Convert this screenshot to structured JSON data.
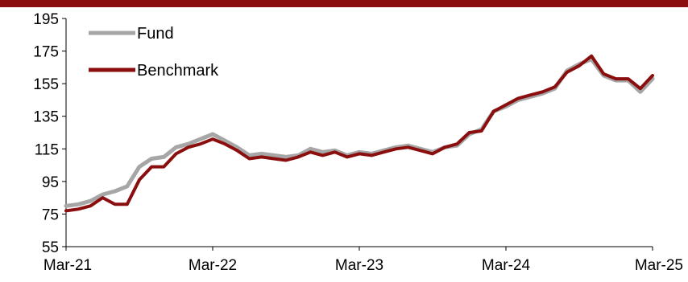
{
  "chart_data": {
    "type": "line",
    "title": "",
    "xlabel": "",
    "ylabel": "",
    "ylim": [
      55,
      195
    ],
    "y_ticks": [
      "195",
      "175",
      "155",
      "135",
      "115",
      "95",
      "75",
      "55"
    ],
    "x_ticks": [
      "Mar-21",
      "Mar-22",
      "Mar-23",
      "Mar-24",
      "Mar-25"
    ],
    "xlim": [
      "2021-03",
      "2025-03"
    ],
    "grid": false,
    "legend_position": "top-left",
    "series": [
      {
        "name": "Fund",
        "color": "#a6a6a6",
        "x": [
          "2021-03",
          "2021-04",
          "2021-05",
          "2021-06",
          "2021-07",
          "2021-08",
          "2021-09",
          "2021-10",
          "2021-11",
          "2021-12",
          "2022-01",
          "2022-02",
          "2022-03",
          "2022-04",
          "2022-05",
          "2022-06",
          "2022-07",
          "2022-08",
          "2022-09",
          "2022-10",
          "2022-11",
          "2022-12",
          "2023-01",
          "2023-02",
          "2023-03",
          "2023-04",
          "2023-05",
          "2023-06",
          "2023-07",
          "2023-08",
          "2023-09",
          "2023-10",
          "2023-11",
          "2023-12",
          "2024-01",
          "2024-02",
          "2024-03",
          "2024-04",
          "2024-05",
          "2024-06",
          "2024-07",
          "2024-08",
          "2024-09",
          "2024-10",
          "2024-11",
          "2024-12",
          "2025-01",
          "2025-02",
          "2025-03"
        ],
        "values": [
          80,
          81,
          83,
          87,
          89,
          92,
          104,
          109,
          110,
          116,
          118,
          121,
          124,
          120,
          116,
          111,
          112,
          111,
          110,
          111,
          115,
          113,
          114,
          111,
          113,
          112,
          114,
          116,
          117,
          115,
          113,
          116,
          117,
          124,
          127,
          138,
          141,
          145,
          147,
          149,
          152,
          163,
          167,
          170,
          160,
          157,
          157,
          150,
          158
        ]
      },
      {
        "name": "Benchmark",
        "color": "#8b0e0e",
        "x": [
          "2021-03",
          "2021-04",
          "2021-05",
          "2021-06",
          "2021-07",
          "2021-08",
          "2021-09",
          "2021-10",
          "2021-11",
          "2021-12",
          "2022-01",
          "2022-02",
          "2022-03",
          "2022-04",
          "2022-05",
          "2022-06",
          "2022-07",
          "2022-08",
          "2022-09",
          "2022-10",
          "2022-11",
          "2022-12",
          "2023-01",
          "2023-02",
          "2023-03",
          "2023-04",
          "2023-05",
          "2023-06",
          "2023-07",
          "2023-08",
          "2023-09",
          "2023-10",
          "2023-11",
          "2023-12",
          "2024-01",
          "2024-02",
          "2024-03",
          "2024-04",
          "2024-05",
          "2024-06",
          "2024-07",
          "2024-08",
          "2024-09",
          "2024-10",
          "2024-11",
          "2024-12",
          "2025-01",
          "2025-02",
          "2025-03"
        ],
        "values": [
          77,
          78,
          80,
          85,
          81,
          81,
          96,
          104,
          104,
          112,
          116,
          118,
          121,
          118,
          114,
          109,
          110,
          109,
          108,
          110,
          113,
          111,
          113,
          110,
          112,
          111,
          113,
          115,
          116,
          114,
          112,
          116,
          118,
          125,
          126,
          138,
          142,
          146,
          148,
          150,
          153,
          162,
          166,
          172,
          161,
          158,
          158,
          152,
          160
        ]
      }
    ]
  }
}
